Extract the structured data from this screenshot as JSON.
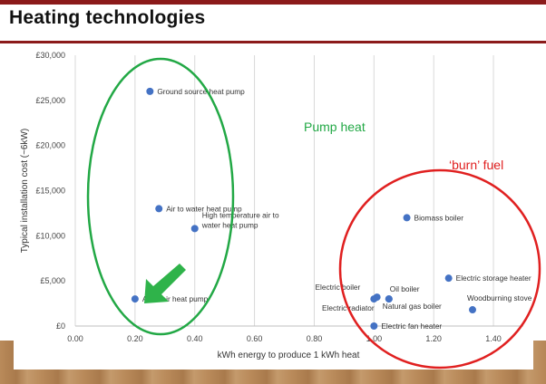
{
  "slide": {
    "title": "Heating technologies",
    "colors": {
      "accent_bar": "#8b1a1a",
      "title_rule": "#8b1a1a",
      "floor": "#b98a5a",
      "point": "#4472c4",
      "pump_circle": "#22a845",
      "burn_circle": "#e02020",
      "arrow": "#2fb34a"
    }
  },
  "chart_data": {
    "type": "scatter",
    "xlabel": "kWh energy to produce 1 kWh heat",
    "ylabel": "Typical installation cost (~6kW)",
    "xlim": [
      0,
      1.5
    ],
    "ylim": [
      0,
      30000
    ],
    "xticks": [
      {
        "value": 0,
        "label": "0.00"
      },
      {
        "value": 0.2,
        "label": "0.20"
      },
      {
        "value": 0.4,
        "label": "0.40"
      },
      {
        "value": 0.6,
        "label": "0.60"
      },
      {
        "value": 0.8,
        "label": "0.80"
      },
      {
        "value": 1.0,
        "label": "1.00"
      },
      {
        "value": 1.2,
        "label": "1.20"
      },
      {
        "value": 1.4,
        "label": "1.40"
      }
    ],
    "yticks": [
      {
        "value": 0,
        "label": "£0"
      },
      {
        "value": 5000,
        "label": "£5,000"
      },
      {
        "value": 10000,
        "label": "£10,000"
      },
      {
        "value": 15000,
        "label": "£15,000"
      },
      {
        "value": 20000,
        "label": "£20,000"
      },
      {
        "value": 25000,
        "label": "£25,000"
      },
      {
        "value": 30000,
        "label": "£30,000"
      }
    ],
    "grid": "vertical",
    "points": [
      {
        "label": [
          "Ground source heat pump"
        ],
        "x": 0.25,
        "y": 26000,
        "anchor": "right"
      },
      {
        "label": [
          "Air to water heat pump"
        ],
        "x": 0.28,
        "y": 13000,
        "anchor": "right"
      },
      {
        "label": [
          "High temperature air to",
          "water heat pump"
        ],
        "x": 0.4,
        "y": 10800,
        "anchor": "right-up"
      },
      {
        "label": [
          "Air to air heat pump"
        ],
        "x": 0.2,
        "y": 3000,
        "anchor": "right"
      },
      {
        "label": [
          "Biomass boiler"
        ],
        "x": 1.11,
        "y": 12000,
        "anchor": "right"
      },
      {
        "label": [
          "Electric storage heater"
        ],
        "x": 1.25,
        "y": 5300,
        "anchor": "right"
      },
      {
        "label": [
          "Electric boiler"
        ],
        "x": 1.0,
        "y": 3000,
        "anchor": "above-left"
      },
      {
        "label": [
          "Electric radiator"
        ],
        "x": 1.01,
        "y": 3200,
        "anchor": "below-left"
      },
      {
        "label": [
          "Oil boiler"
        ],
        "x": 1.05,
        "y": 3000,
        "anchor": "above-right"
      },
      {
        "label": [
          "Natural gas boiler"
        ],
        "x": 1.05,
        "y": 3000,
        "anchor": "below-right"
      },
      {
        "label": [
          "Woodburning stove"
        ],
        "x": 1.33,
        "y": 1800,
        "anchor": "above-right"
      },
      {
        "label": [
          "Electric fan heater"
        ],
        "x": 1.0,
        "y": 0,
        "anchor": "right"
      }
    ],
    "annotations": [
      {
        "text": "Pump heat",
        "color": "#22a845"
      },
      {
        "text": "‘burn’ fuel",
        "color": "#e02020"
      }
    ]
  }
}
